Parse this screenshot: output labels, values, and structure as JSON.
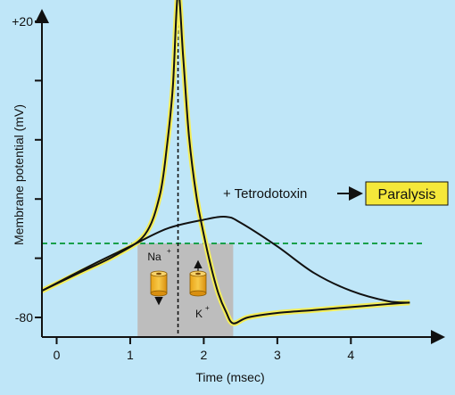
{
  "chart_data": {
    "type": "line",
    "xlabel": "Time (msec)",
    "ylabel": "Membrane potential (mV)",
    "xlim": [
      -0.2,
      5.1
    ],
    "ylim": [
      -80,
      20
    ],
    "x_ticks": [
      0,
      1,
      2,
      3,
      4
    ],
    "x_tick_labels": [
      "0",
      "1",
      "2",
      "3",
      "4"
    ],
    "y_ticks": [
      -80,
      -60,
      -40,
      -20,
      0,
      20
    ],
    "y_tick_labels": [
      "-80",
      "",
      "",
      "",
      "",
      "+20"
    ],
    "threshold": -55,
    "peak_time": 1.65,
    "shaded_interval": [
      1.1,
      2.4
    ],
    "series": [
      {
        "color": "#111111",
        "highlight": "#f4ee5a",
        "x": [
          -0.2,
          0.3,
          0.8,
          1.2,
          1.4,
          1.5,
          1.58,
          1.65,
          1.72,
          1.8,
          1.9,
          2.0,
          2.1,
          2.2,
          2.3,
          2.4,
          2.6,
          3.0,
          3.5,
          4.0,
          4.5,
          4.8
        ],
        "y": [
          -71,
          -65,
          -59,
          -52,
          -39,
          -22,
          -2,
          30,
          8,
          -19,
          -39,
          -52,
          -63,
          -72,
          -78,
          -82,
          -80,
          -78.5,
          -77.5,
          -76.5,
          -75.5,
          -75
        ]
      },
      {
        "color": "#111111",
        "x": [
          -0.2,
          0.5,
          1.0,
          1.5,
          2.0,
          2.3,
          2.5,
          3.0,
          3.5,
          4.0,
          4.5,
          4.8
        ],
        "y": [
          -71,
          -62,
          -56,
          -50,
          -47,
          -46,
          -48,
          -56,
          -65,
          -71,
          -74.5,
          -75
        ]
      }
    ],
    "annotations": {
      "toxin": "+ Tetrodotoxin",
      "outcome": "Paralysis",
      "na_channel": "Na",
      "na_superscript": "+",
      "k_channel": "K",
      "k_superscript": "+"
    }
  }
}
